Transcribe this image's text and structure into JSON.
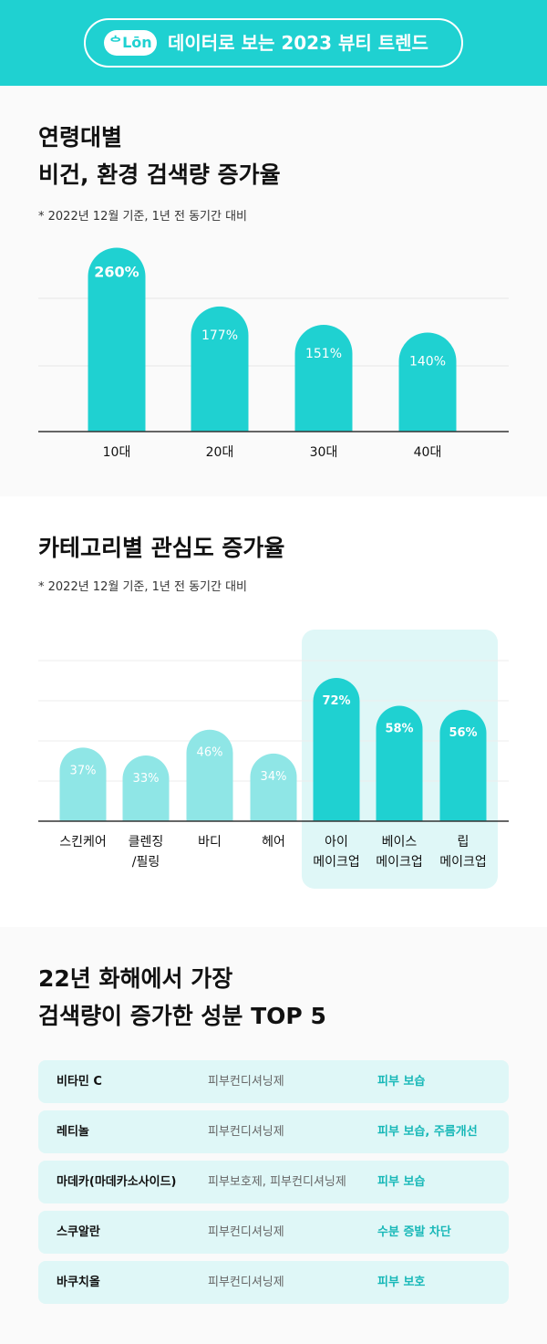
{
  "header": {
    "logo": "ᅌLōn",
    "title": "데이터로 보는 2023 뷰티 트렌드"
  },
  "section1": {
    "title_line1": "연령대별",
    "title_line2": "비건, 환경 검색량 증가율",
    "note": "* 2022년 12월 기준, 1년 전 동기간 대비"
  },
  "section2": {
    "title": "카테고리별 관심도 증가율",
    "note": "* 2022년 12월 기준, 1년 전 동기간 대비"
  },
  "section3": {
    "title_line1": "22년 화해에서 가장",
    "title_line2": "검색량이 증가한 성분 TOP 5",
    "rows": [
      {
        "name": "비타민 C",
        "category": "피부컨디셔닝제",
        "effect": "피부 보습"
      },
      {
        "name": "레티놀",
        "category": "피부컨디셔닝제",
        "effect": "피부 보습, 주름개선"
      },
      {
        "name": "마데카(마데카소사이드)",
        "category": "피부보호제, 피부컨디셔닝제",
        "effect": "피부 보습"
      },
      {
        "name": "스쿠알란",
        "category": "피부컨디셔닝제",
        "effect": "수분 증발 차단"
      },
      {
        "name": "바쿠치올",
        "category": "피부컨디셔닝제",
        "effect": "피부 보호"
      }
    ]
  },
  "colors": {
    "accent": "#1fd1d1",
    "light": "#8fe6e6",
    "highlight_bg": "#dff7f7"
  },
  "chart_data": [
    {
      "type": "bar",
      "categories": [
        "10대",
        "20대",
        "30대",
        "40대"
      ],
      "values": [
        260,
        177,
        151,
        140
      ],
      "value_labels": [
        "260%",
        "177%",
        "151%",
        "140%"
      ],
      "ylim": [
        0,
        320
      ]
    },
    {
      "type": "bar",
      "categories": [
        "스킨케어",
        "클렌징\n/필링",
        "바디",
        "헤어",
        "아이\n메이크업",
        "베이스\n메이크업",
        "립\n메이크업"
      ],
      "values": [
        37,
        33,
        46,
        34,
        72,
        58,
        56
      ],
      "value_labels": [
        "37%",
        "33%",
        "46%",
        "34%",
        "72%",
        "58%",
        "56%"
      ],
      "highlighted": [
        false,
        false,
        false,
        false,
        true,
        true,
        true
      ],
      "ylim": [
        0,
        100
      ]
    }
  ]
}
